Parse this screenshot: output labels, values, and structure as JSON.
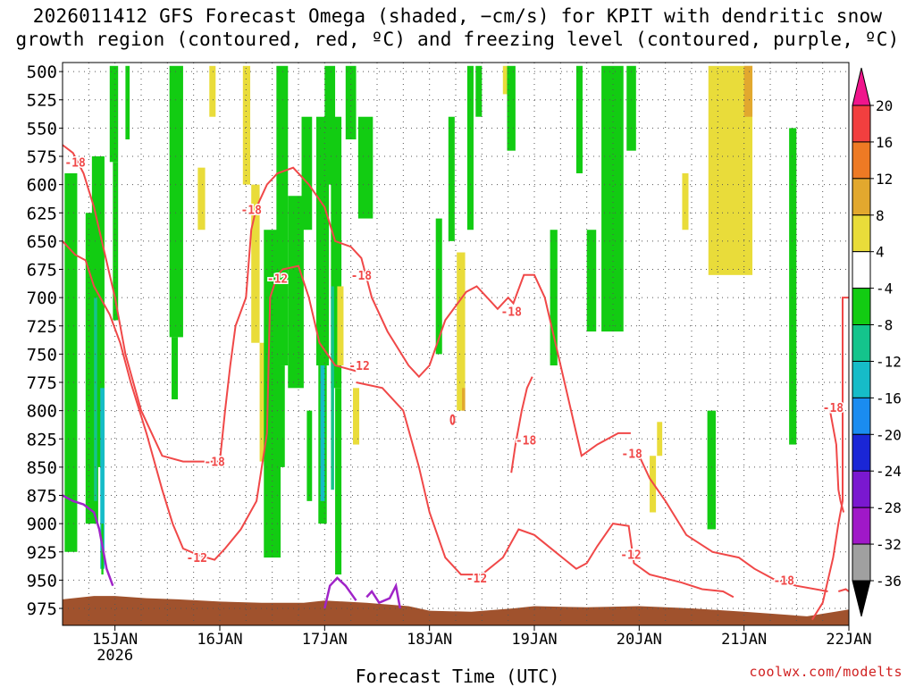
{
  "title": {
    "line1": "2026011412 GFS Forecast Omega (shaded, −cm/s) for KPIT with dendritic snow",
    "line2": "growth region (contoured, red, ºC) and freezing level (contoured, purple, ºC)"
  },
  "credit": "coolwx.com/modelts",
  "chart_data": {
    "type": "heatmap",
    "title": "2026011412 GFS Forecast Omega (shaded, −cm/s) for KPIT with dendritic snow growth region (contoured, red, ºC) and freezing level (contoured, purple, ºC)",
    "xlabel": "Forecast Time (UTC)",
    "ylabel": "",
    "x_range": [
      "2026-01-14T12Z",
      "2026-01-22T00Z"
    ],
    "x_ticks": [
      {
        "day": 15,
        "label": "15JAN",
        "sublabel": "2026"
      },
      {
        "day": 16,
        "label": "16JAN",
        "sublabel": ""
      },
      {
        "day": 17,
        "label": "17JAN",
        "sublabel": ""
      },
      {
        "day": 18,
        "label": "18JAN",
        "sublabel": ""
      },
      {
        "day": 19,
        "label": "19JAN",
        "sublabel": ""
      },
      {
        "day": 20,
        "label": "20JAN",
        "sublabel": ""
      },
      {
        "day": 21,
        "label": "21JAN",
        "sublabel": ""
      },
      {
        "day": 22,
        "label": "22JAN",
        "sublabel": ""
      }
    ],
    "y_ticks": [
      500,
      525,
      550,
      575,
      600,
      625,
      650,
      675,
      700,
      725,
      750,
      775,
      800,
      825,
      850,
      875,
      900,
      925,
      950,
      975
    ],
    "ylim": [
      990,
      492
    ],
    "grid": true,
    "colorbar": {
      "labels": [
        "20",
        "16",
        "12",
        "8",
        "4",
        "-4",
        "-8",
        "-12",
        "-16",
        "-20",
        "-24",
        "-28",
        "-32",
        "-36"
      ],
      "bins": [
        {
          "from": 20,
          "to": 24,
          "color": "#f0158c"
        },
        {
          "from": 16,
          "to": 20,
          "color": "#f23f3f"
        },
        {
          "from": 12,
          "to": 16,
          "color": "#ee7a24"
        },
        {
          "from": 8,
          "to": 12,
          "color": "#e2a82e"
        },
        {
          "from": 4,
          "to": 8,
          "color": "#e9dc3a"
        },
        {
          "from": -4,
          "to": 4,
          "color": "#ffffff"
        },
        {
          "from": -8,
          "to": -4,
          "color": "#12cc12"
        },
        {
          "from": -12,
          "to": -8,
          "color": "#14c48c"
        },
        {
          "from": -16,
          "to": -12,
          "color": "#16bcc8"
        },
        {
          "from": -20,
          "to": -16,
          "color": "#1a8cf0"
        },
        {
          "from": -24,
          "to": -20,
          "color": "#1a26d6"
        },
        {
          "from": -28,
          "to": -24,
          "color": "#7a18d0"
        },
        {
          "from": -32,
          "to": -28,
          "color": "#a018c8"
        },
        {
          "from": -36,
          "to": -32,
          "color": "#a0a0a0"
        },
        {
          "from": -40,
          "to": -36,
          "color": "#000000"
        }
      ]
    },
    "shaded_regions": [
      {
        "omega": -6,
        "t0": 0.02,
        "t1": 0.14,
        "p0": 590,
        "p1": 925
      },
      {
        "omega": -6,
        "t0": 0.22,
        "t1": 0.34,
        "p0": 625,
        "p1": 900
      },
      {
        "omega": -6,
        "t0": 0.28,
        "t1": 0.4,
        "p0": 575,
        "p1": 850
      },
      {
        "omega": -10,
        "t0": 0.3,
        "t1": 0.33,
        "p0": 700,
        "p1": 880
      },
      {
        "omega": -14,
        "t0": 0.36,
        "t1": 0.4,
        "p0": 780,
        "p1": 940
      },
      {
        "omega": -6,
        "t0": 0.37,
        "t1": 0.39,
        "p0": 900,
        "p1": 945
      },
      {
        "omega": -6,
        "t0": 0.45,
        "t1": 0.53,
        "p0": 495,
        "p1": 580
      },
      {
        "omega": -6,
        "t0": 0.48,
        "t1": 0.53,
        "p0": 580,
        "p1": 720
      },
      {
        "omega": -6,
        "t0": 0.6,
        "t1": 0.64,
        "p0": 495,
        "p1": 560
      },
      {
        "omega": -6,
        "t0": 1.02,
        "t1": 1.15,
        "p0": 495,
        "p1": 735
      },
      {
        "omega": -6,
        "t0": 1.04,
        "t1": 1.1,
        "p0": 735,
        "p1": 790
      },
      {
        "omega": 5,
        "t0": 1.29,
        "t1": 1.36,
        "p0": 585,
        "p1": 640
      },
      {
        "omega": 5,
        "t0": 1.4,
        "t1": 1.46,
        "p0": 495,
        "p1": 540
      },
      {
        "omega": 5,
        "t0": 1.72,
        "t1": 1.79,
        "p0": 495,
        "p1": 600
      },
      {
        "omega": 5,
        "t0": 1.8,
        "t1": 1.88,
        "p0": 600,
        "p1": 740
      },
      {
        "omega": 5,
        "t0": 1.88,
        "t1": 1.97,
        "p0": 740,
        "p1": 845
      },
      {
        "omega": -6,
        "t0": 1.92,
        "t1": 2.08,
        "p0": 640,
        "p1": 930
      },
      {
        "omega": -6,
        "t0": 2.04,
        "t1": 2.15,
        "p0": 495,
        "p1": 760
      },
      {
        "omega": -6,
        "t0": 2.06,
        "t1": 2.12,
        "p0": 760,
        "p1": 850
      },
      {
        "omega": -6,
        "t0": 2.15,
        "t1": 2.3,
        "p0": 610,
        "p1": 780
      },
      {
        "omega": -6,
        "t0": 2.28,
        "t1": 2.38,
        "p0": 540,
        "p1": 640
      },
      {
        "omega": -6,
        "t0": 2.33,
        "t1": 2.38,
        "p0": 800,
        "p1": 880
      },
      {
        "omega": -6,
        "t0": 2.42,
        "t1": 2.54,
        "p0": 540,
        "p1": 760
      },
      {
        "omega": -6,
        "t0": 2.44,
        "t1": 2.52,
        "p0": 760,
        "p1": 900
      },
      {
        "omega": -14,
        "t0": 2.46,
        "t1": 2.5,
        "p0": 760,
        "p1": 880
      },
      {
        "omega": -6,
        "t0": 2.5,
        "t1": 2.6,
        "p0": 495,
        "p1": 600
      },
      {
        "omega": -6,
        "t0": 2.56,
        "t1": 2.66,
        "p0": 540,
        "p1": 780
      },
      {
        "omega": -10,
        "t0": 2.56,
        "t1": 2.59,
        "p0": 690,
        "p1": 870
      },
      {
        "omega": -6,
        "t0": 2.6,
        "t1": 2.66,
        "p0": 780,
        "p1": 945
      },
      {
        "omega": 5,
        "t0": 2.62,
        "t1": 2.68,
        "p0": 690,
        "p1": 760
      },
      {
        "omega": 5,
        "t0": 2.77,
        "t1": 2.83,
        "p0": 780,
        "p1": 830
      },
      {
        "omega": -6,
        "t0": 2.7,
        "t1": 2.8,
        "p0": 495,
        "p1": 560
      },
      {
        "omega": -6,
        "t0": 2.82,
        "t1": 2.96,
        "p0": 540,
        "p1": 630
      },
      {
        "omega": -6,
        "t0": 3.56,
        "t1": 3.62,
        "p0": 630,
        "p1": 750
      },
      {
        "omega": -6,
        "t0": 3.68,
        "t1": 3.74,
        "p0": 540,
        "p1": 650
      },
      {
        "omega": 5,
        "t0": 3.76,
        "t1": 3.84,
        "p0": 660,
        "p1": 800
      },
      {
        "omega": 10,
        "t0": 3.81,
        "t1": 3.84,
        "p0": 780,
        "p1": 800
      },
      {
        "omega": -6,
        "t0": 3.86,
        "t1": 3.92,
        "p0": 495,
        "p1": 640
      },
      {
        "omega": -6,
        "t0": 3.94,
        "t1": 4.0,
        "p0": 495,
        "p1": 540
      },
      {
        "omega": 5,
        "t0": 4.2,
        "t1": 4.26,
        "p0": 495,
        "p1": 520
      },
      {
        "omega": -6,
        "t0": 4.24,
        "t1": 4.32,
        "p0": 495,
        "p1": 570
      },
      {
        "omega": -6,
        "t0": 4.65,
        "t1": 4.72,
        "p0": 640,
        "p1": 760
      },
      {
        "omega": -6,
        "t0": 4.9,
        "t1": 4.96,
        "p0": 495,
        "p1": 590
      },
      {
        "omega": -6,
        "t0": 5.0,
        "t1": 5.09,
        "p0": 640,
        "p1": 730
      },
      {
        "omega": -6,
        "t0": 5.14,
        "t1": 5.35,
        "p0": 495,
        "p1": 730
      },
      {
        "omega": -6,
        "t0": 5.38,
        "t1": 5.47,
        "p0": 495,
        "p1": 570
      },
      {
        "omega": 5,
        "t0": 5.6,
        "t1": 5.66,
        "p0": 840,
        "p1": 890
      },
      {
        "omega": 5,
        "t0": 5.67,
        "t1": 5.72,
        "p0": 810,
        "p1": 840
      },
      {
        "omega": 5,
        "t0": 5.91,
        "t1": 5.97,
        "p0": 590,
        "p1": 640
      },
      {
        "omega": -6,
        "t0": 6.15,
        "t1": 6.23,
        "p0": 800,
        "p1": 905
      },
      {
        "omega": 5,
        "t0": 6.16,
        "t1": 6.58,
        "p0": 495,
        "p1": 680
      },
      {
        "omega": 10,
        "t0": 6.5,
        "t1": 6.58,
        "p0": 495,
        "p1": 540
      },
      {
        "omega": -6,
        "t0": 6.93,
        "t1": 7.0,
        "p0": 550,
        "p1": 830
      }
    ],
    "series": [
      {
        "name": "-12 ºC",
        "kind": "contour",
        "color": "#f04848",
        "pressure_levels": [
          650,
          925,
          950
        ]
      },
      {
        "name": "-18 ºC",
        "kind": "contour",
        "color": "#f04848",
        "pressure_levels": [
          580,
          845,
          825,
          950
        ]
      },
      {
        "name": "0 ºC",
        "kind": "contour",
        "color": "#a024c8",
        "pressure_levels": [
          875,
          950
        ]
      }
    ],
    "contour_labels": [
      {
        "text": "-18",
        "day": 14.62,
        "p": 580
      },
      {
        "text": "-18",
        "day": 15.95,
        "p": 845
      },
      {
        "text": "-12",
        "day": 15.78,
        "p": 930
      },
      {
        "text": "-18",
        "day": 16.3,
        "p": 622
      },
      {
        "text": "-12",
        "day": 16.55,
        "p": 683
      },
      {
        "text": "-18",
        "day": 17.35,
        "p": 680
      },
      {
        "text": "-12",
        "day": 17.33,
        "p": 760
      },
      {
        "text": "-12",
        "day": 18.45,
        "p": 948
      },
      {
        "text": "-18",
        "day": 18.78,
        "p": 712
      },
      {
        "text": "-18",
        "day": 18.92,
        "p": 826
      },
      {
        "text": "-18",
        "day": 19.93,
        "p": 838
      },
      {
        "text": "-12",
        "day": 19.92,
        "p": 927
      },
      {
        "text": "-18",
        "day": 21.38,
        "p": 950
      },
      {
        "text": "-18",
        "day": 21.85,
        "p": 797
      }
    ],
    "terrain": {
      "color": "#a0522d",
      "surface_pressure_range": [
        962,
        982
      ]
    }
  }
}
